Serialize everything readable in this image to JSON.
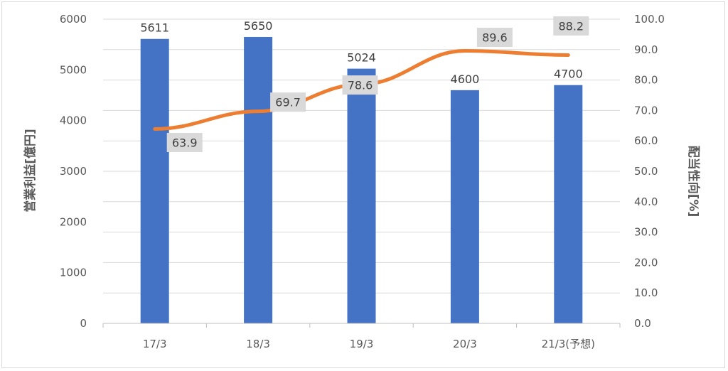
{
  "chart_data": {
    "type": "bar",
    "categories": [
      "17/3",
      "18/3",
      "19/3",
      "20/3",
      "21/3(予想)"
    ],
    "ylabel": "営業利益[億円]",
    "y2label": "配当性向[%]",
    "ylim": [
      0,
      6000
    ],
    "y2lim": [
      0,
      100
    ],
    "yticks": [
      "0",
      "1000",
      "2000",
      "3000",
      "4000",
      "5000",
      "6000"
    ],
    "y2ticks": [
      "0.0",
      "10.0",
      "20.0",
      "30.0",
      "40.0",
      "50.0",
      "60.0",
      "70.0",
      "80.0",
      "90.0",
      "100.0"
    ],
    "grid": true,
    "series": [
      {
        "type": "bar",
        "axis": "left",
        "color": "#4472c4",
        "values": [
          5611,
          5650,
          5024,
          4600,
          4700
        ],
        "labels": [
          "5611",
          "5650",
          "5024",
          "4600",
          "4700"
        ]
      },
      {
        "type": "line",
        "axis": "right",
        "color": "#ed7d31",
        "values": [
          63.9,
          69.7,
          78.6,
          89.6,
          88.2
        ],
        "labels": [
          "63.9",
          "69.7",
          "78.6",
          "89.6",
          "88.2"
        ]
      }
    ]
  }
}
